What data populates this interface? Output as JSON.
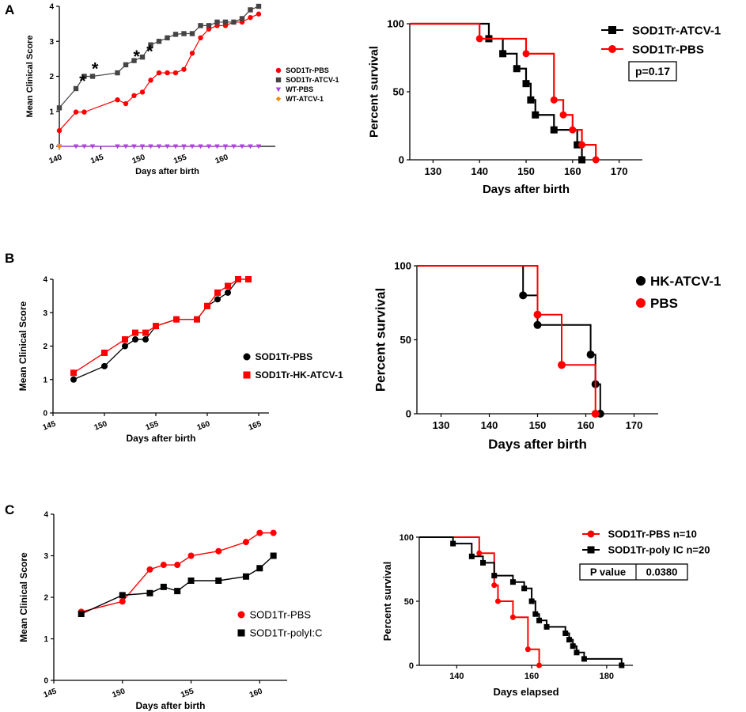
{
  "panel_labels": [
    "A",
    "B",
    "C"
  ],
  "chart_data": [
    {
      "id": "A1",
      "type": "line",
      "panel": "A",
      "title": "",
      "xlabel": "Days after birth",
      "ylabel": "Mean Clinical Score",
      "xlim": [
        140,
        166
      ],
      "ylim": [
        0,
        4
      ],
      "xticks": [
        140,
        145,
        150,
        155,
        160
      ],
      "yticks": [
        0,
        1,
        2,
        3,
        4
      ],
      "x_tick_labels": [
        "140",
        "145",
        "150",
        "155",
        "160"
      ],
      "y_tick_labels": [
        "0",
        "1",
        "2",
        "3",
        "4"
      ],
      "legend_position": "right",
      "annotations": [
        {
          "text": "*",
          "x": 142.8,
          "y": 1.65
        },
        {
          "text": "*",
          "x": 144.3,
          "y": 2.0
        },
        {
          "text": "*",
          "x": 149.3,
          "y": 2.35
        },
        {
          "text": "*",
          "x": 150.9,
          "y": 2.5
        }
      ],
      "series": [
        {
          "name": "SOD1Tr-PBS",
          "color": "#ff0000",
          "marker": "circle",
          "x": [
            140,
            142,
            143,
            147,
            148,
            149,
            150,
            151,
            152,
            153,
            154,
            155,
            156,
            157,
            158,
            159,
            160,
            161,
            162,
            163,
            164
          ],
          "y": [
            0.45,
            0.98,
            0.98,
            1.33,
            1.22,
            1.45,
            1.55,
            1.89,
            2.1,
            2.1,
            2.1,
            2.2,
            2.66,
            3.1,
            3.35,
            3.45,
            3.45,
            3.55,
            3.55,
            3.68,
            3.78
          ]
        },
        {
          "name": "SOD1Tr-ATCV-1",
          "color": "#444444",
          "marker": "square",
          "x": [
            140,
            142,
            143,
            144,
            147,
            148,
            149,
            150,
            151,
            152,
            153,
            154,
            155,
            156,
            157,
            158,
            159,
            160,
            161,
            162,
            163,
            164
          ],
          "y": [
            1.1,
            1.65,
            2.0,
            2.0,
            2.1,
            2.33,
            2.45,
            2.55,
            2.9,
            3.0,
            3.1,
            3.2,
            3.22,
            3.22,
            3.45,
            3.45,
            3.55,
            3.55,
            3.55,
            3.65,
            3.9,
            4.0
          ]
        },
        {
          "name": "WT-PBS",
          "color": "#b040e0",
          "marker": "triangle-down",
          "x": [
            140,
            142,
            143,
            144,
            147,
            148,
            149,
            150,
            151,
            152,
            153,
            154,
            155,
            156,
            157,
            158,
            159,
            160,
            161,
            162,
            163,
            164
          ],
          "y": [
            0,
            0,
            0,
            0,
            0,
            0,
            0,
            0,
            0,
            0,
            0,
            0,
            0,
            0,
            0,
            0,
            0,
            0,
            0,
            0,
            0,
            0
          ]
        },
        {
          "name": "WT-ATCV-1",
          "color": "#f08c00",
          "marker": "diamond",
          "x": [
            140
          ],
          "y": [
            0
          ]
        }
      ]
    },
    {
      "id": "A2",
      "type": "line",
      "step": true,
      "panel": "A",
      "title": "",
      "xlabel": "Days after birth",
      "ylabel": "Percent survival",
      "xlim": [
        125,
        175
      ],
      "ylim": [
        0,
        100
      ],
      "xticks": [
        130,
        140,
        150,
        160,
        170
      ],
      "yticks": [
        0,
        50,
        100
      ],
      "x_tick_labels": [
        "130",
        "140",
        "150",
        "160",
        "170"
      ],
      "y_tick_labels": [
        "0",
        "50",
        "100"
      ],
      "legend_position": "top-right",
      "annotation_box": {
        "label": "p=0.17",
        "value": ""
      },
      "series": [
        {
          "name": "SOD1Tr-ATCV-1",
          "color": "#000000",
          "marker": "square",
          "start": [
            125,
            100
          ],
          "x_end": 162,
          "steps": [
            [
              142,
              89
            ],
            [
              145,
              78
            ],
            [
              148,
              67
            ],
            [
              150,
              56
            ],
            [
              151,
              44
            ],
            [
              152,
              33
            ],
            [
              156,
              22
            ],
            [
              161,
              11
            ],
            [
              162,
              0
            ]
          ],
          "markers": [
            [
              142,
              89
            ],
            [
              145,
              78
            ],
            [
              148,
              67
            ],
            [
              150,
              56
            ],
            [
              151,
              44
            ],
            [
              152,
              33
            ],
            [
              156,
              22
            ],
            [
              161,
              11
            ],
            [
              162,
              0
            ]
          ]
        },
        {
          "name": "SOD1Tr-PBS",
          "color": "#ff0000",
          "marker": "circle",
          "start": [
            125,
            100
          ],
          "x_end": 165,
          "steps": [
            [
              140,
              89
            ],
            [
              150,
              78
            ],
            [
              156,
              44
            ],
            [
              158,
              33
            ],
            [
              160,
              22
            ],
            [
              162,
              11
            ],
            [
              165,
              0
            ]
          ],
          "markers": [
            [
              140,
              89
            ],
            [
              150,
              78
            ],
            [
              156,
              44
            ],
            [
              158,
              33
            ],
            [
              160,
              22
            ],
            [
              162,
              11
            ],
            [
              165,
              0
            ]
          ]
        }
      ]
    },
    {
      "id": "B1",
      "type": "line",
      "panel": "B",
      "title": "",
      "xlabel": "Days after birth",
      "ylabel": "Mean Clinical Score",
      "xlim": [
        145,
        166
      ],
      "ylim": [
        0,
        4
      ],
      "xticks": [
        145,
        150,
        155,
        160,
        165
      ],
      "yticks": [
        0,
        1,
        2,
        3,
        4
      ],
      "x_tick_labels": [
        "145",
        "150",
        "155",
        "160",
        "165"
      ],
      "y_tick_labels": [
        "0",
        "1",
        "2",
        "3",
        "4"
      ],
      "legend_position": "right",
      "series": [
        {
          "name": "SOD1Tr-PBS",
          "color": "#000000",
          "marker": "circle",
          "x": [
            147,
            150,
            152,
            153,
            154,
            155,
            157,
            159,
            160,
            161,
            162,
            163,
            164
          ],
          "y": [
            1.0,
            1.4,
            2.0,
            2.2,
            2.2,
            2.6,
            2.8,
            2.8,
            3.2,
            3.4,
            3.6,
            4.0,
            4.0
          ]
        },
        {
          "name": "SOD1Tr-HK-ATCV-1",
          "color": "#ff0000",
          "marker": "square",
          "x": [
            147,
            150,
            152,
            153,
            154,
            155,
            157,
            159,
            160,
            161,
            162,
            163,
            164
          ],
          "y": [
            1.2,
            1.8,
            2.2,
            2.4,
            2.4,
            2.6,
            2.8,
            2.8,
            3.2,
            3.6,
            3.8,
            4.0,
            4.0
          ]
        }
      ]
    },
    {
      "id": "B2",
      "type": "line",
      "step": true,
      "panel": "B",
      "title": "",
      "xlabel": "Days after birth",
      "ylabel": "Percent survival",
      "xlim": [
        125,
        175
      ],
      "ylim": [
        0,
        100
      ],
      "xticks": [
        130,
        140,
        150,
        160,
        170
      ],
      "yticks": [
        0,
        50,
        100
      ],
      "x_tick_labels": [
        "130",
        "140",
        "150",
        "160",
        "170"
      ],
      "y_tick_labels": [
        "0",
        "50",
        "100"
      ],
      "legend_position": "top-right",
      "series": [
        {
          "name": "HK-ATCV-1",
          "color": "#000000",
          "marker": "circle",
          "start": [
            125,
            100
          ],
          "x_end": 163,
          "steps": [
            [
              147,
              80
            ],
            [
              150,
              60
            ],
            [
              161,
              40
            ],
            [
              162,
              20
            ],
            [
              163,
              0
            ]
          ],
          "markers": [
            [
              147,
              80
            ],
            [
              150,
              60
            ],
            [
              161,
              40
            ],
            [
              162,
              20
            ],
            [
              163,
              0
            ]
          ]
        },
        {
          "name": "PBS",
          "color": "#ff0000",
          "marker": "circle",
          "start": [
            125,
            100
          ],
          "x_end": 162,
          "steps": [
            [
              150,
              67
            ],
            [
              155,
              33
            ],
            [
              162,
              0
            ]
          ],
          "markers": [
            [
              150,
              67
            ],
            [
              155,
              33
            ],
            [
              162,
              0
            ]
          ]
        }
      ]
    },
    {
      "id": "C1",
      "type": "line",
      "panel": "C",
      "title": "",
      "xlabel": "Days after birth",
      "ylabel": "Mean Clinical Score",
      "xlim": [
        145,
        162
      ],
      "ylim": [
        0,
        4
      ],
      "xticks": [
        145,
        150,
        155,
        160
      ],
      "yticks": [
        0,
        1,
        2,
        3,
        4
      ],
      "x_tick_labels": [
        "145",
        "150",
        "155",
        "160"
      ],
      "y_tick_labels": [
        "0",
        "1",
        "2",
        "3",
        "4"
      ],
      "legend_position": "right",
      "series": [
        {
          "name": "SOD1Tr-PBS",
          "color": "#ff0000",
          "marker": "circle",
          "x": [
            147,
            150,
            152,
            153,
            154,
            155,
            157,
            159,
            160,
            161
          ],
          "y": [
            1.65,
            1.9,
            2.67,
            2.78,
            2.78,
            3.0,
            3.11,
            3.33,
            3.55,
            3.55
          ]
        },
        {
          "name": "SOD1Tr-polyI:C",
          "color": "#000000",
          "marker": "square",
          "x": [
            147,
            150,
            152,
            153,
            154,
            155,
            157,
            159,
            160,
            161
          ],
          "y": [
            1.6,
            2.05,
            2.1,
            2.25,
            2.15,
            2.4,
            2.4,
            2.5,
            2.7,
            3.0
          ]
        }
      ]
    },
    {
      "id": "C2",
      "type": "line",
      "step": true,
      "panel": "C",
      "title": "",
      "xlabel": "Days elapsed",
      "ylabel": "Percent survival",
      "xlim": [
        130,
        187
      ],
      "ylim": [
        0,
        100
      ],
      "xticks": [
        140,
        160,
        180
      ],
      "yticks": [
        0,
        50,
        100
      ],
      "x_tick_labels": [
        "140",
        "160",
        "180"
      ],
      "y_tick_labels": [
        "0",
        "50",
        "100"
      ],
      "legend_position": "top-right",
      "annotation_box": {
        "label": "P value",
        "value": "0.0380"
      },
      "series": [
        {
          "name": "SOD1Tr-PBS n=10",
          "color": "#ff0000",
          "marker": "circle",
          "start": [
            130,
            100
          ],
          "x_end": 162,
          "steps": [
            [
              146,
              87.5
            ],
            [
              150,
              62.5
            ],
            [
              151,
              50
            ],
            [
              155,
              37.5
            ],
            [
              159,
              12.5
            ],
            [
              162,
              0
            ]
          ],
          "markers": [
            [
              146,
              87.5
            ],
            [
              150,
              62.5
            ],
            [
              151,
              50
            ],
            [
              155,
              37.5
            ],
            [
              159,
              12.5
            ],
            [
              162,
              0
            ]
          ]
        },
        {
          "name": "SOD1Tr-poly IC n=20",
          "color": "#000000",
          "marker": "square",
          "start": [
            130,
            100
          ],
          "x_end": 184,
          "steps": [
            [
              139,
              95
            ],
            [
              144,
              85
            ],
            [
              147,
              80
            ],
            [
              150,
              70
            ],
            [
              155,
              65
            ],
            [
              158,
              60
            ],
            [
              160,
              50
            ],
            [
              161,
              40
            ],
            [
              162,
              35
            ],
            [
              164,
              30
            ],
            [
              169,
              25
            ],
            [
              170,
              20
            ],
            [
              171,
              15
            ],
            [
              172,
              10
            ],
            [
              174,
              5
            ],
            [
              184,
              0
            ]
          ],
          "markers": [
            [
              139,
              95
            ],
            [
              144,
              85
            ],
            [
              147,
              80
            ],
            [
              150,
              70
            ],
            [
              155,
              65
            ],
            [
              158,
              60
            ],
            [
              160,
              50
            ],
            [
              161,
              40
            ],
            [
              162,
              35
            ],
            [
              164,
              30
            ],
            [
              169,
              25
            ],
            [
              170,
              20
            ],
            [
              171,
              15
            ],
            [
              172,
              10
            ],
            [
              174,
              5
            ],
            [
              184,
              0
            ]
          ]
        }
      ]
    }
  ]
}
